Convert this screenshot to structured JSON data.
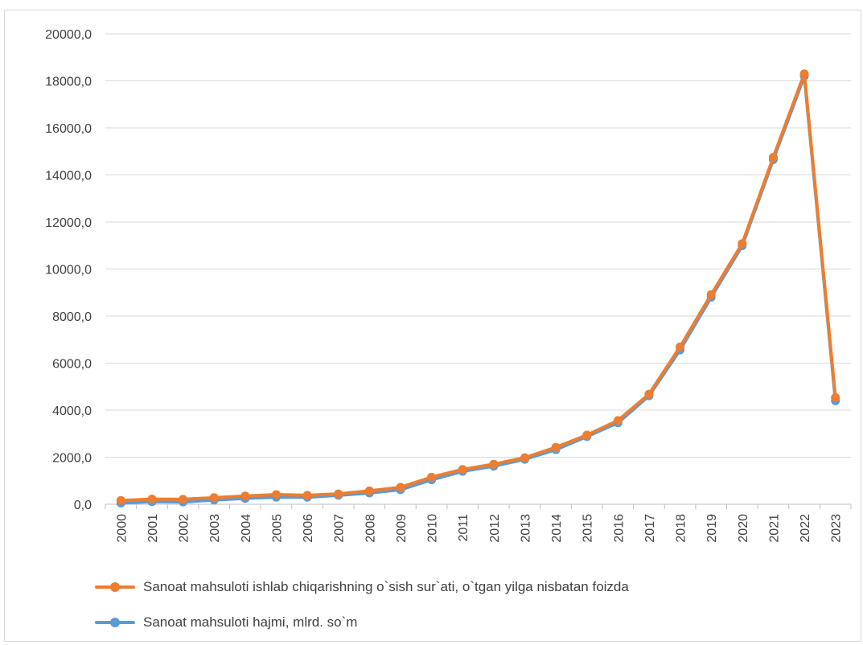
{
  "chart_data": {
    "type": "line",
    "title": "",
    "xlabel": "",
    "ylabel": "",
    "x": [
      "2000",
      "2001",
      "2002",
      "2003",
      "2004",
      "2005",
      "2006",
      "2007",
      "2008",
      "2009",
      "2010",
      "2011",
      "2012",
      "2013",
      "2014",
      "2015",
      "2016",
      "2017",
      "2018",
      "2019",
      "2020",
      "2021",
      "2022",
      "2023"
    ],
    "ylim": [
      0,
      20000
    ],
    "yticks": [
      "0,0",
      "2000,0",
      "4000,0",
      "6000,0",
      "8000,0",
      "10000,0",
      "12000,0",
      "14000,0",
      "16000,0",
      "18000,0",
      "20000,0"
    ],
    "grid": true,
    "legend_position": "bottom-left",
    "series": [
      {
        "name": "Sanoat mahsuloti hajmi, mlrd. so`m",
        "color": "#5b9bd5",
        "values": [
          50,
          110,
          100,
          180,
          250,
          300,
          300,
          380,
          480,
          620,
          1040,
          1400,
          1620,
          1910,
          2320,
          2880,
          3460,
          4610,
          6560,
          8800,
          10990,
          14650,
          18200,
          4400
        ]
      },
      {
        "name": "Sanoat mahsuloti ishlab chiqarishning o`sish sur`ati,  o`tgan yilga nisbatan foizda",
        "color": "#ed7d31",
        "values": [
          160,
          220,
          210,
          280,
          350,
          410,
          380,
          440,
          570,
          720,
          1150,
          1480,
          1700,
          1980,
          2420,
          2940,
          3560,
          4680,
          6690,
          8910,
          11080,
          14750,
          18300,
          4540
        ]
      }
    ]
  },
  "legend": {
    "item_orange": "Sanoat mahsuloti ishlab chiqarishning o`sish sur`ati,  o`tgan yilga nisbatan foizda",
    "item_blue": "Sanoat mahsuloti hajmi, mlrd. so`m"
  }
}
